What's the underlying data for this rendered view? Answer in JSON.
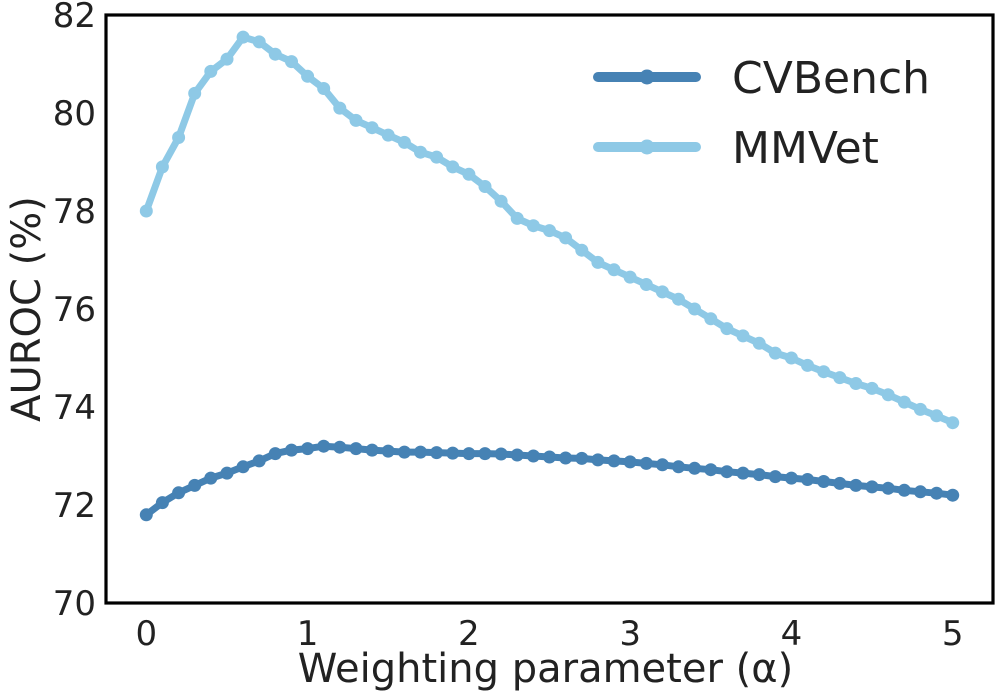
{
  "chart_data": {
    "type": "line",
    "title": "",
    "xlabel": "Weighting parameter (α)",
    "ylabel": "AUROC (%)",
    "xlim": [
      -0.25,
      5.25
    ],
    "ylim": [
      70,
      82
    ],
    "xticks": [
      0,
      1,
      2,
      3,
      4,
      5
    ],
    "yticks": [
      70,
      72,
      74,
      76,
      78,
      80,
      82
    ],
    "grid": false,
    "legend_position": "top-right",
    "x": [
      0,
      0.1,
      0.2,
      0.3,
      0.4,
      0.5,
      0.6,
      0.7,
      0.8,
      0.9,
      1.0,
      1.1,
      1.2,
      1.3,
      1.4,
      1.5,
      1.6,
      1.7,
      1.8,
      1.9,
      2.0,
      2.1,
      2.2,
      2.3,
      2.4,
      2.5,
      2.6,
      2.7,
      2.8,
      2.9,
      3.0,
      3.1,
      3.2,
      3.3,
      3.4,
      3.5,
      3.6,
      3.7,
      3.8,
      3.9,
      4.0,
      4.1,
      4.2,
      4.3,
      4.4,
      4.5,
      4.6,
      4.7,
      4.8,
      4.9,
      5.0
    ],
    "series": [
      {
        "name": "CVBench",
        "color": "#4682b4",
        "values": [
          71.8,
          72.05,
          72.25,
          72.4,
          72.55,
          72.65,
          72.78,
          72.9,
          73.05,
          73.12,
          73.15,
          73.2,
          73.18,
          73.15,
          73.12,
          73.1,
          73.08,
          73.08,
          73.07,
          73.06,
          73.05,
          73.05,
          73.04,
          73.02,
          73.0,
          72.98,
          72.96,
          72.95,
          72.92,
          72.9,
          72.88,
          72.85,
          72.82,
          72.78,
          72.75,
          72.72,
          72.68,
          72.65,
          72.62,
          72.58,
          72.55,
          72.52,
          72.48,
          72.44,
          72.4,
          72.37,
          72.34,
          72.3,
          72.27,
          72.24,
          72.2
        ]
      },
      {
        "name": "MMVet",
        "color": "#8ec9e6",
        "values": [
          78.0,
          78.9,
          79.5,
          80.4,
          80.85,
          81.1,
          81.55,
          81.45,
          81.2,
          81.05,
          80.75,
          80.5,
          80.1,
          79.85,
          79.7,
          79.55,
          79.4,
          79.2,
          79.1,
          78.9,
          78.75,
          78.5,
          78.2,
          77.85,
          77.7,
          77.6,
          77.45,
          77.2,
          76.95,
          76.8,
          76.65,
          76.5,
          76.35,
          76.2,
          76.0,
          75.8,
          75.6,
          75.45,
          75.3,
          75.1,
          75.0,
          74.85,
          74.72,
          74.6,
          74.48,
          74.38,
          74.25,
          74.1,
          73.95,
          73.82,
          73.68
        ]
      }
    ]
  }
}
